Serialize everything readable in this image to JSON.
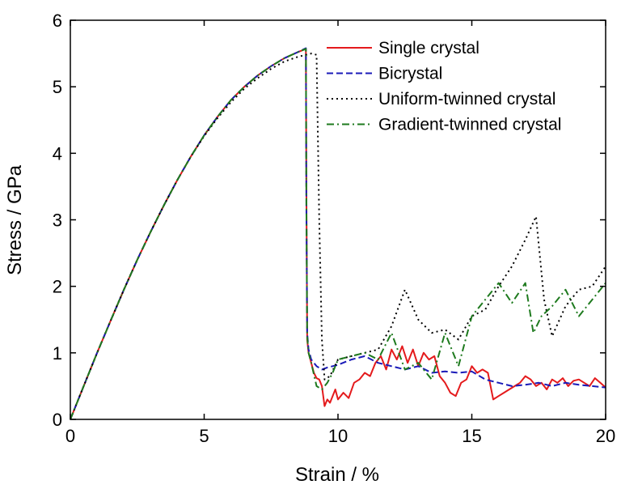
{
  "chart_data": {
    "type": "line",
    "xlabel": "Strain / %",
    "ylabel": "Stress / GPa",
    "xlim": [
      0,
      20
    ],
    "ylim": [
      0,
      6
    ],
    "xticks": [
      "0",
      "5",
      "10",
      "15",
      "20"
    ],
    "yticks": [
      "0",
      "1",
      "2",
      "3",
      "4",
      "5",
      "6"
    ],
    "grid": false,
    "legend_position": "top-right",
    "series": [
      {
        "name": "Single crystal",
        "color": "#e41a1c",
        "dash": "solid",
        "x": [
          0,
          0.5,
          1,
          1.5,
          2,
          2.5,
          3,
          3.5,
          4,
          4.5,
          5,
          5.5,
          6,
          6.5,
          7,
          7.5,
          8,
          8.5,
          8.8,
          8.82,
          8.85,
          8.9,
          9.0,
          9.1,
          9.2,
          9.3,
          9.4,
          9.5,
          9.6,
          9.7,
          9.8,
          9.9,
          10.0,
          10.2,
          10.4,
          10.6,
          10.8,
          11.0,
          11.2,
          11.4,
          11.6,
          11.8,
          12.0,
          12.2,
          12.4,
          12.6,
          12.8,
          13.0,
          13.2,
          13.4,
          13.6,
          13.8,
          14.0,
          14.2,
          14.4,
          14.6,
          14.8,
          15.0,
          15.2,
          15.4,
          15.6,
          15.8,
          16.0,
          16.2,
          16.4,
          16.6,
          16.8,
          17.0,
          17.2,
          17.4,
          17.6,
          17.8,
          18.0,
          18.2,
          18.4,
          18.6,
          18.8,
          19.0,
          19.2,
          19.4,
          19.6,
          19.8,
          20.0
        ],
        "values": [
          0,
          0.5,
          1.0,
          1.48,
          1.95,
          2.4,
          2.82,
          3.22,
          3.6,
          3.95,
          4.27,
          4.55,
          4.8,
          5.0,
          5.17,
          5.31,
          5.43,
          5.52,
          5.57,
          3.5,
          1.2,
          1.0,
          0.85,
          0.7,
          0.62,
          0.6,
          0.5,
          0.2,
          0.3,
          0.25,
          0.35,
          0.45,
          0.3,
          0.4,
          0.32,
          0.55,
          0.6,
          0.7,
          0.65,
          0.85,
          0.95,
          0.75,
          1.05,
          0.9,
          1.1,
          0.85,
          1.05,
          0.8,
          1.0,
          0.9,
          0.95,
          0.65,
          0.55,
          0.4,
          0.35,
          0.55,
          0.6,
          0.8,
          0.7,
          0.75,
          0.7,
          0.3,
          0.35,
          0.4,
          0.45,
          0.5,
          0.55,
          0.65,
          0.6,
          0.5,
          0.55,
          0.45,
          0.6,
          0.55,
          0.62,
          0.5,
          0.58,
          0.6,
          0.55,
          0.5,
          0.62,
          0.55,
          0.48
        ]
      },
      {
        "name": "Bicrystal",
        "color": "#1a1ab8",
        "dash": "dashed",
        "x": [
          0,
          0.5,
          1,
          1.5,
          2,
          2.5,
          3,
          3.5,
          4,
          4.5,
          5,
          5.5,
          6,
          6.5,
          7,
          7.5,
          8,
          8.5,
          8.8,
          8.82,
          8.85,
          8.9,
          9.0,
          9.2,
          9.4,
          9.6,
          9.8,
          10.0,
          10.5,
          11.0,
          11.5,
          12.0,
          12.5,
          13.0,
          13.5,
          14.0,
          14.5,
          15.0,
          15.5,
          16.0,
          16.5,
          17.0,
          17.5,
          18.0,
          18.5,
          19.0,
          19.5,
          20.0
        ],
        "values": [
          0,
          0.5,
          1.0,
          1.48,
          1.95,
          2.4,
          2.82,
          3.22,
          3.6,
          3.95,
          4.27,
          4.55,
          4.8,
          5.0,
          5.17,
          5.31,
          5.43,
          5.52,
          5.58,
          3.2,
          1.3,
          1.05,
          0.9,
          0.8,
          0.75,
          0.78,
          0.8,
          0.82,
          0.9,
          0.95,
          0.85,
          0.8,
          0.75,
          0.8,
          0.7,
          0.72,
          0.7,
          0.72,
          0.6,
          0.55,
          0.5,
          0.52,
          0.55,
          0.5,
          0.55,
          0.52,
          0.5,
          0.48
        ]
      },
      {
        "name": "Uniform-twinned crystal",
        "color": "#000000",
        "dash": "dotted",
        "x": [
          0,
          0.5,
          1,
          1.5,
          2,
          2.5,
          3,
          3.5,
          4,
          4.5,
          5,
          5.5,
          6,
          6.5,
          7,
          7.5,
          8,
          8.5,
          9.0,
          9.2,
          9.3,
          9.4,
          9.5,
          9.7,
          10.0,
          10.5,
          11.0,
          11.5,
          12.0,
          12.5,
          13.0,
          13.5,
          14.0,
          14.5,
          15.0,
          15.5,
          16.0,
          16.5,
          17.0,
          17.4,
          17.7,
          18.0,
          18.5,
          19.0,
          19.5,
          20.0
        ],
        "values": [
          0,
          0.5,
          1.0,
          1.48,
          1.95,
          2.4,
          2.82,
          3.22,
          3.6,
          3.95,
          4.26,
          4.53,
          4.77,
          4.97,
          5.13,
          5.27,
          5.38,
          5.45,
          5.5,
          5.48,
          3.0,
          1.2,
          0.6,
          0.65,
          0.9,
          0.95,
          1.0,
          1.05,
          1.4,
          1.95,
          1.5,
          1.3,
          1.35,
          1.2,
          1.55,
          1.65,
          2.0,
          2.3,
          2.7,
          3.05,
          1.8,
          1.25,
          1.7,
          1.95,
          2.0,
          2.3
        ]
      },
      {
        "name": "Gradient-twinned crystal",
        "color": "#1e7a1e",
        "dash": "dashdot",
        "x": [
          0,
          0.5,
          1,
          1.5,
          2,
          2.5,
          3,
          3.5,
          4,
          4.5,
          5,
          5.5,
          6,
          6.5,
          7,
          7.5,
          8,
          8.5,
          8.8,
          8.82,
          8.85,
          8.9,
          9.0,
          9.2,
          9.4,
          9.6,
          9.8,
          10.0,
          10.5,
          11.0,
          11.5,
          12.0,
          12.5,
          13.0,
          13.5,
          14.0,
          14.5,
          15.0,
          15.5,
          16.0,
          16.5,
          17.0,
          17.3,
          17.6,
          18.0,
          18.5,
          19.0,
          19.5,
          20.0
        ],
        "values": [
          0,
          0.5,
          1.0,
          1.48,
          1.95,
          2.4,
          2.82,
          3.22,
          3.6,
          3.95,
          4.27,
          4.55,
          4.8,
          5.0,
          5.17,
          5.31,
          5.43,
          5.52,
          5.57,
          3.3,
          1.25,
          1.0,
          0.85,
          0.5,
          0.45,
          0.55,
          0.7,
          0.9,
          0.95,
          1.0,
          0.9,
          1.3,
          0.75,
          0.85,
          0.6,
          1.3,
          0.8,
          1.55,
          1.8,
          2.05,
          1.75,
          2.05,
          1.3,
          1.55,
          1.7,
          1.95,
          1.55,
          1.8,
          2.05
        ]
      }
    ]
  }
}
